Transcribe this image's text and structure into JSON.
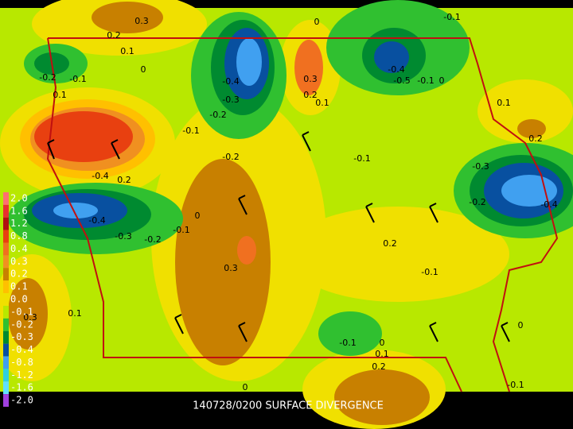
{
  "caption": "140728/0200 SURFACE DIVERGENCE",
  "legend": [
    {
      "label": "2.0",
      "color": "#ff7070"
    },
    {
      "label": "1.6",
      "color": "#e83030"
    },
    {
      "label": "1.2",
      "color": "#b01010"
    },
    {
      "label": "0.8",
      "color": "#e84010"
    },
    {
      "label": "0.4",
      "color": "#f07020"
    },
    {
      "label": "0.3",
      "color": "#f09020"
    },
    {
      "label": "0.2",
      "color": "#c88000"
    },
    {
      "label": "0.1",
      "color": "#ffc000"
    },
    {
      "label": "0.0",
      "color": "#f0e000"
    },
    {
      "label": "-0.1",
      "color": "#b8e800"
    },
    {
      "label": "-0.2",
      "color": "#30c030"
    },
    {
      "label": "-0.3",
      "color": "#008a30"
    },
    {
      "label": "-0.4",
      "color": "#0850a0"
    },
    {
      "label": "-0.8",
      "color": "#40a0f0"
    },
    {
      "label": "-1.2",
      "color": "#30d0e0"
    },
    {
      "label": "-1.6",
      "color": "#60e0ff"
    },
    {
      "label": "-2.0",
      "color": "#a040e0"
    }
  ],
  "contour_labels": [
    "0.3",
    "0.2",
    "0.1",
    "0",
    "-0.2",
    "-0.1",
    "0.1",
    "0",
    "-0.1",
    "-0.4",
    "-0.3",
    "-0.2",
    "0.3",
    "0.2",
    "0.1",
    "-0.4",
    "-0.5",
    "-0.1",
    "0",
    "0.1",
    "0.2",
    "-0.1",
    "-0.2",
    "-0.1",
    "-0.3",
    "-0.2",
    "-0.4",
    "-0.4",
    "0.2",
    "-0.4",
    "-0.3",
    "-0.2",
    "-0.1",
    "0",
    "0.2",
    "0.3",
    "-0.1",
    "0.1",
    "0.3",
    "-0.1",
    "0",
    "0.1",
    "0.2",
    "0",
    "-0.1",
    "0"
  ]
}
